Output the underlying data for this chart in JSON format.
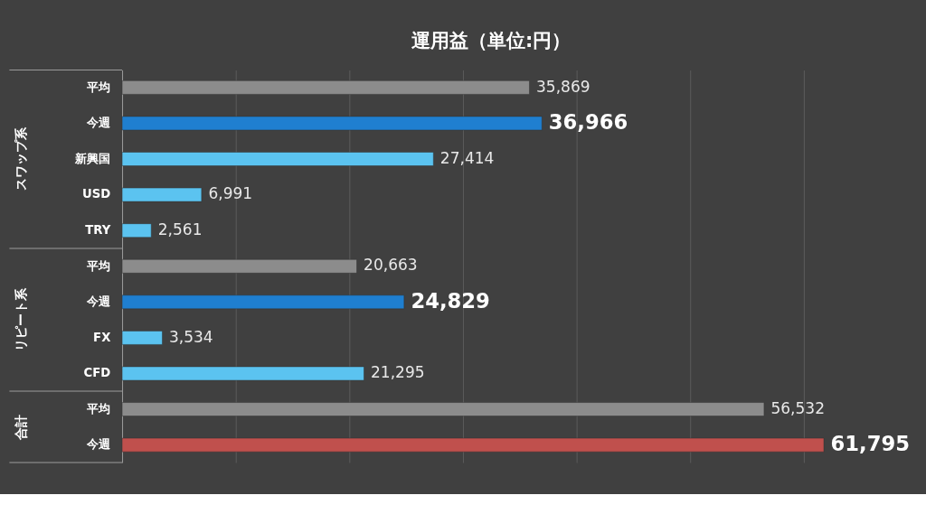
{
  "chart_data": {
    "type": "bar",
    "orientation": "horizontal",
    "title": "運用益（単位:円）",
    "categories": [
      "平均",
      "今週",
      "新興国",
      "USD",
      "TRY",
      "平均",
      "今週",
      "FX",
      "CFD",
      "平均",
      "今週"
    ],
    "values": [
      35869,
      36966,
      27414,
      6991,
      2561,
      20663,
      24829,
      3534,
      21295,
      56532,
      61795
    ],
    "colors": [
      "#8c8c8c",
      "#1f7fd0",
      "#5bc3f0",
      "#5bc3f0",
      "#5bc3f0",
      "#8c8c8c",
      "#1f7fd0",
      "#5bc3f0",
      "#5bc3f0",
      "#8c8c8c",
      "#c0504d"
    ],
    "value_labels": [
      "35,869",
      "36,966",
      "27,414",
      "6,991",
      "2,561",
      "20,663",
      "24,829",
      "3,534",
      "21,295",
      "56,532",
      "61,795"
    ],
    "tick_labels": "y",
    "grid": "x",
    "legend": false,
    "annotations": [
      "スワップ系",
      "リピート系",
      "合計"
    ]
  }
}
